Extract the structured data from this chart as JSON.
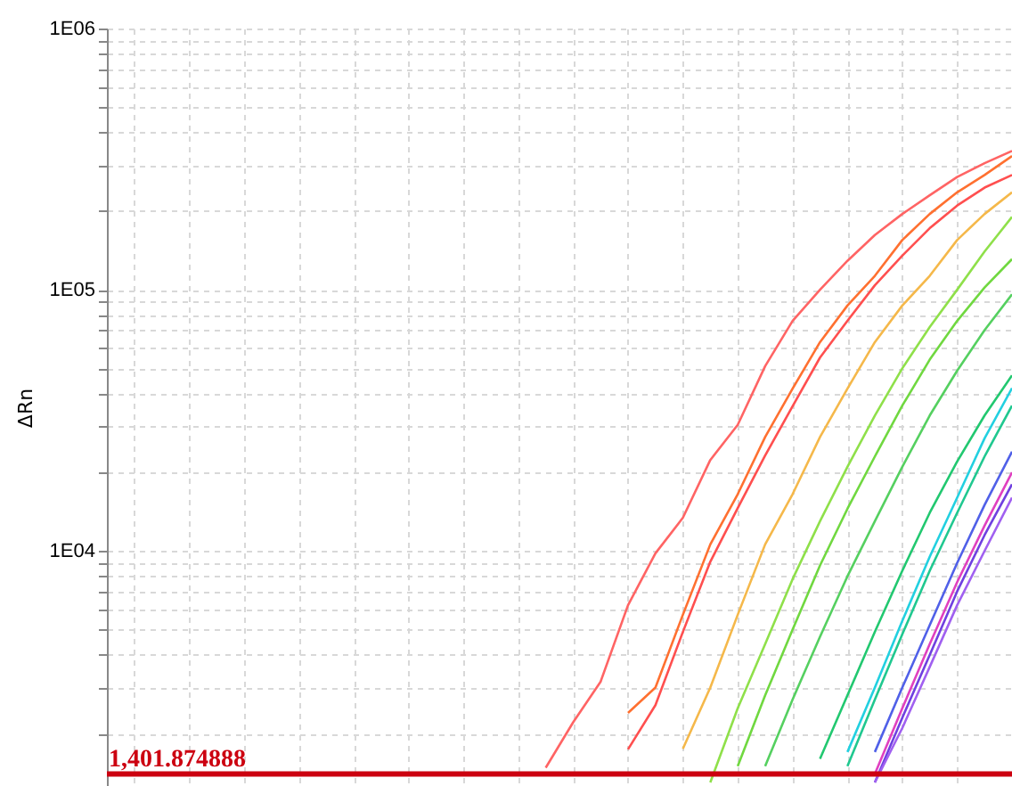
{
  "chart_data": {
    "type": "line",
    "ylabel": "ΔRn",
    "log": "y",
    "grid": true,
    "tick_labels": "y",
    "marker": "none",
    "categories": [
      null,
      null,
      null,
      null,
      null,
      null,
      null,
      null,
      null,
      null,
      null,
      null,
      null,
      null,
      null,
      null,
      null,
      null,
      null,
      null,
      null,
      null,
      null,
      null,
      null,
      null,
      null,
      null,
      null,
      null,
      null,
      null,
      null,
      null
    ],
    "ylim": [
      1260,
      1000000
    ],
    "yticks": [
      {
        "value": 2000,
        "label": null
      },
      {
        "value": 3000,
        "label": null
      },
      {
        "value": 4000,
        "label": null
      },
      {
        "value": 5000,
        "label": null
      },
      {
        "value": 6000,
        "label": null
      },
      {
        "value": 7000,
        "label": null
      },
      {
        "value": 8000,
        "label": null
      },
      {
        "value": 9000,
        "label": null
      },
      {
        "value": 10000,
        "label": "1E04"
      },
      {
        "value": 20000,
        "label": null
      },
      {
        "value": 30000,
        "label": null
      },
      {
        "value": 40000,
        "label": null
      },
      {
        "value": 50000,
        "label": null
      },
      {
        "value": 60000,
        "label": null
      },
      {
        "value": 70000,
        "label": null
      },
      {
        "value": 80000,
        "label": null
      },
      {
        "value": 90000,
        "label": null
      },
      {
        "value": 100000,
        "label": "1E05"
      },
      {
        "value": 200000,
        "label": null
      },
      {
        "value": 300000,
        "label": null
      },
      {
        "value": 400000,
        "label": null
      },
      {
        "value": 500000,
        "label": null
      },
      {
        "value": 600000,
        "label": null
      },
      {
        "value": 700000,
        "label": null
      },
      {
        "value": 800000,
        "label": null
      },
      {
        "value": 900000,
        "label": null
      },
      {
        "value": 1000000,
        "label": "1E06"
      }
    ],
    "ref_lines": [
      {
        "axis": "y",
        "value": 1401.874888,
        "label": "1,401.874888",
        "color": "#cc0010"
      }
    ],
    "series": [
      {
        "color": "#ff6464",
        "values": [
          null,
          null,
          null,
          null,
          null,
          null,
          null,
          null,
          null,
          null,
          null,
          null,
          null,
          null,
          null,
          null,
          1480,
          2210,
          3160,
          6200,
          9800,
          13400,
          22300,
          30400,
          51000,
          76000,
          100000,
          129000,
          162000,
          195000,
          230000,
          270000,
          305000,
          340000
        ]
      },
      {
        "color": "#ff7030",
        "values": [
          null,
          null,
          null,
          null,
          null,
          null,
          null,
          null,
          null,
          null,
          null,
          null,
          null,
          null,
          null,
          null,
          null,
          null,
          null,
          2400,
          3000,
          5700,
          10600,
          16500,
          27300,
          41800,
          63000,
          87000,
          113000,
          155000,
          195000,
          236000,
          275000,
          325000
        ]
      },
      {
        "color": "#ff4f4f",
        "values": [
          null,
          null,
          null,
          null,
          null,
          null,
          null,
          null,
          null,
          null,
          null,
          null,
          null,
          null,
          null,
          null,
          null,
          null,
          null,
          1740,
          2570,
          4900,
          9100,
          14600,
          23200,
          35800,
          55000,
          76000,
          104000,
          135000,
          172000,
          210000,
          246000,
          275000
        ]
      },
      {
        "color": "#f5b84a",
        "values": [
          null,
          null,
          null,
          null,
          null,
          null,
          null,
          null,
          null,
          null,
          null,
          null,
          null,
          null,
          null,
          null,
          null,
          null,
          null,
          null,
          null,
          1750,
          3000,
          5700,
          10600,
          16500,
          27300,
          41800,
          63000,
          87000,
          113000,
          155000,
          195000,
          236000
        ]
      },
      {
        "color": "#8fe04a",
        "values": [
          null,
          null,
          null,
          null,
          null,
          null,
          null,
          null,
          null,
          null,
          null,
          null,
          null,
          null,
          null,
          null,
          null,
          null,
          null,
          null,
          null,
          null,
          1300,
          2500,
          4400,
          7800,
          13000,
          21000,
          33000,
          50000,
          72000,
          100000,
          140000,
          190000
        ]
      },
      {
        "color": "#70d840",
        "values": [
          null,
          null,
          null,
          null,
          null,
          null,
          null,
          null,
          null,
          null,
          null,
          null,
          null,
          null,
          null,
          null,
          null,
          null,
          null,
          null,
          null,
          null,
          null,
          1500,
          2800,
          5000,
          8800,
          14500,
          23000,
          36000,
          54000,
          76000,
          102000,
          131000
        ]
      },
      {
        "color": "#55d060",
        "values": [
          null,
          null,
          null,
          null,
          null,
          null,
          null,
          null,
          null,
          null,
          null,
          null,
          null,
          null,
          null,
          null,
          null,
          null,
          null,
          null,
          null,
          null,
          null,
          null,
          1500,
          2700,
          4700,
          8000,
          13000,
          21000,
          33000,
          49000,
          70000,
          96000
        ]
      },
      {
        "color": "#22c870",
        "values": [
          null,
          null,
          null,
          null,
          null,
          null,
          null,
          null,
          null,
          null,
          null,
          null,
          null,
          null,
          null,
          null,
          null,
          null,
          null,
          null,
          null,
          null,
          null,
          null,
          null,
          null,
          1600,
          2800,
          4900,
          8400,
          14000,
          22000,
          33000,
          47000
        ]
      },
      {
        "color": "#22d0e0",
        "values": [
          null,
          null,
          null,
          null,
          null,
          null,
          null,
          null,
          null,
          null,
          null,
          null,
          null,
          null,
          null,
          null,
          null,
          null,
          null,
          null,
          null,
          null,
          null,
          null,
          null,
          null,
          null,
          1700,
          3000,
          5400,
          9500,
          16000,
          27000,
          42000
        ]
      },
      {
        "color": "#20c890",
        "values": [
          null,
          null,
          null,
          null,
          null,
          null,
          null,
          null,
          null,
          null,
          null,
          null,
          null,
          null,
          null,
          null,
          null,
          null,
          null,
          null,
          null,
          null,
          null,
          null,
          null,
          null,
          null,
          1500,
          2700,
          4800,
          8400,
          14000,
          23000,
          36000
        ]
      },
      {
        "color": "#5060e8",
        "values": [
          null,
          null,
          null,
          null,
          null,
          null,
          null,
          null,
          null,
          null,
          null,
          null,
          null,
          null,
          null,
          null,
          null,
          null,
          null,
          null,
          null,
          null,
          null,
          null,
          null,
          null,
          null,
          null,
          1700,
          3000,
          5200,
          9000,
          15000,
          24000
        ]
      },
      {
        "color": "#e040c0",
        "values": [
          null,
          null,
          null,
          null,
          null,
          null,
          null,
          null,
          null,
          null,
          null,
          null,
          null,
          null,
          null,
          null,
          null,
          null,
          null,
          null,
          null,
          null,
          null,
          null,
          null,
          null,
          null,
          null,
          1400,
          2500,
          4400,
          7600,
          12500,
          20000
        ]
      },
      {
        "color": "#7040e0",
        "values": [
          null,
          null,
          null,
          null,
          null,
          null,
          null,
          null,
          null,
          null,
          null,
          null,
          null,
          null,
          null,
          null,
          null,
          null,
          null,
          null,
          null,
          null,
          null,
          null,
          null,
          null,
          null,
          null,
          1300,
          2300,
          4000,
          7000,
          11500,
          18000
        ]
      },
      {
        "color": "#a060f0",
        "values": [
          null,
          null,
          null,
          null,
          null,
          null,
          null,
          null,
          null,
          null,
          null,
          null,
          null,
          null,
          null,
          null,
          null,
          null,
          null,
          null,
          null,
          null,
          null,
          null,
          null,
          null,
          null,
          null,
          1300,
          2100,
          3600,
          6200,
          10000,
          16000
        ]
      }
    ]
  }
}
